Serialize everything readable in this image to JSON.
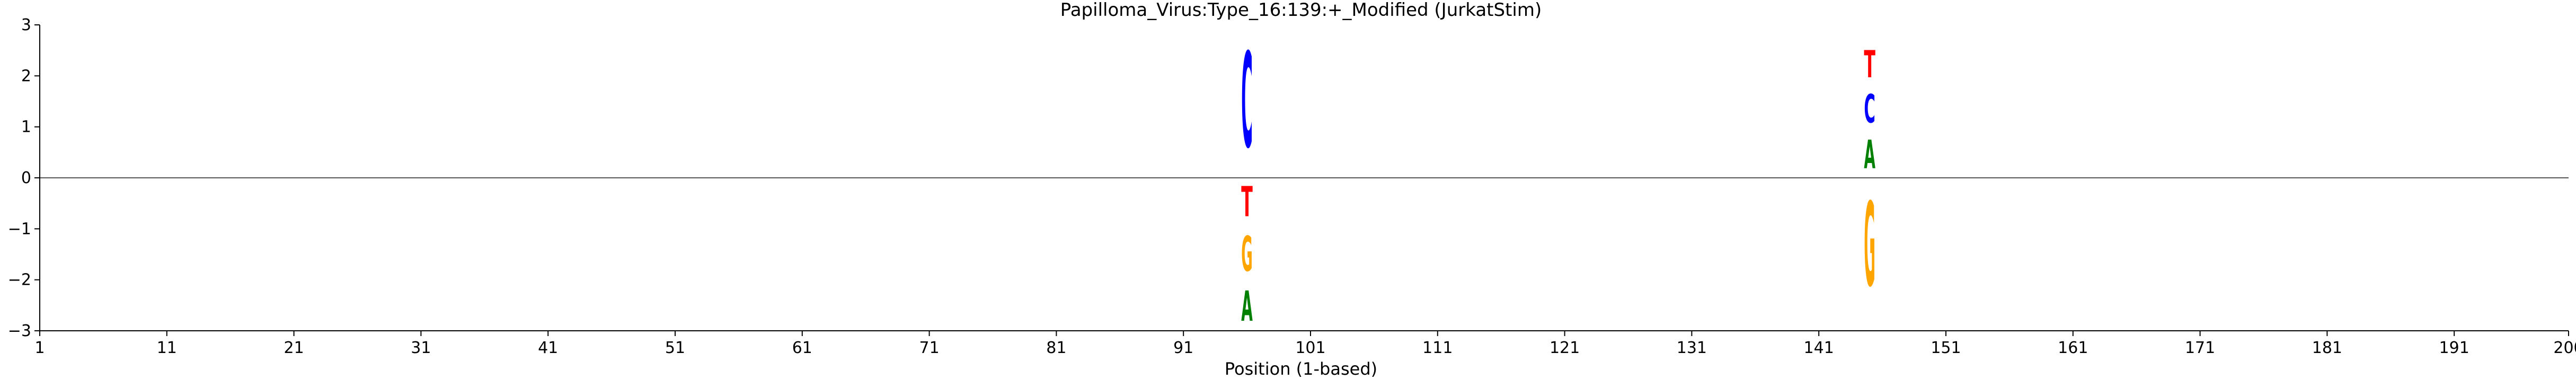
{
  "chart_data": {
    "type": "sequence-logo",
    "title": "Papilloma_Virus:Type_16:139:+_Modified  (JurkatStim)",
    "xlabel": "Position (1-based)",
    "ylabel": "",
    "xlim": [
      1,
      200
    ],
    "ylim": [
      -3,
      3
    ],
    "x_tick_labels": [
      "1",
      "11",
      "21",
      "31",
      "41",
      "51",
      "61",
      "71",
      "81",
      "91",
      "101",
      "111",
      "121",
      "131",
      "141",
      "151",
      "161",
      "171",
      "181",
      "191",
      "200"
    ],
    "x_ticks": [
      1,
      11,
      21,
      31,
      41,
      51,
      61,
      71,
      81,
      91,
      101,
      111,
      121,
      131,
      141,
      151,
      161,
      171,
      181,
      191,
      200
    ],
    "y_tick_labels": [
      "−3",
      "−2",
      "−1",
      "0",
      "1",
      "2",
      "3"
    ],
    "y_ticks": [
      -3,
      -2,
      -1,
      0,
      1,
      2,
      3
    ],
    "baseline": 0,
    "colors": {
      "A": "#008000",
      "C": "#0000ff",
      "G": "#ffa500",
      "T": "#ff0000"
    },
    "positions": [
      {
        "position": 96,
        "letters": [
          {
            "base": "C",
            "bottom": 0.0,
            "top": 3.0
          },
          {
            "base": "T",
            "bottom": -0.95,
            "top": 0.0
          },
          {
            "base": "G",
            "bottom": -2.05,
            "top": -0.95
          },
          {
            "base": "A",
            "bottom": -3.0,
            "top": -2.05
          }
        ]
      },
      {
        "position": 145,
        "letters": [
          {
            "base": "A",
            "bottom": 0.0,
            "top": 0.9
          },
          {
            "base": "C",
            "bottom": 0.9,
            "top": 1.8
          },
          {
            "base": "T",
            "bottom": 1.8,
            "top": 2.65
          },
          {
            "base": "G",
            "bottom": -2.65,
            "top": 0.0
          }
        ]
      }
    ]
  }
}
